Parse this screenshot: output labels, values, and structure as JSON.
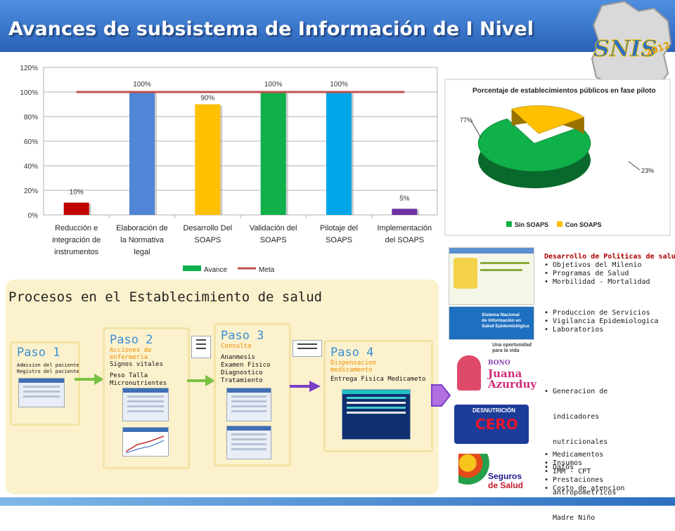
{
  "slide": {
    "title": "Avances de subsistema de Información de I Nivel",
    "logo_text": "SNIS",
    "logo_year": "2012"
  },
  "chart_data": [
    {
      "type": "bar",
      "categories": [
        "Reducción e integración de instrumentos",
        "Elaboración de la Normativa legal",
        "Desarrollo Del SOAPS",
        "Validación del SOAPS",
        "Pilotaje del SOAPS",
        "Implementación del SOAPS"
      ],
      "category_lines": [
        [
          "Reducción e",
          "integración de",
          "instrumentos"
        ],
        [
          "Elaboración de",
          "la Normativa",
          "legal"
        ],
        [
          "Desarrollo Del",
          "SOAPS"
        ],
        [
          "Validación del",
          "SOAPS"
        ],
        [
          "Pilotaje del",
          "SOAPS"
        ],
        [
          "Implementación",
          "del SOAPS"
        ]
      ],
      "series": [
        {
          "name": "Avance",
          "values": [
            10,
            100,
            90,
            100,
            100,
            5
          ],
          "labels": [
            "10%",
            "100%",
            "90%",
            "100%",
            "100%",
            "5%"
          ]
        },
        {
          "name": "Meta",
          "values": [
            100,
            100,
            100,
            100,
            100,
            100
          ]
        }
      ],
      "bar_colors": [
        "#c00000",
        "#4f86d6",
        "#ffc000",
        "#10b04a",
        "#00a6e8",
        "#7030a0"
      ],
      "meta_color": "#c0504d",
      "legend_color_avance": "#10b04a",
      "ylim": [
        0,
        120
      ],
      "yticks": [
        "0%",
        "20%",
        "40%",
        "60%",
        "80%",
        "100%",
        "120%"
      ],
      "grid": true,
      "legend": "bottom"
    },
    {
      "type": "pie",
      "title": "Porcentaje  de establecimientos públicos en fase piloto",
      "labels": [
        "Sin SOAPS",
        "Con SOAPS"
      ],
      "values": [
        77,
        23
      ],
      "value_labels": [
        "77%",
        "23%"
      ],
      "colors": [
        "#10b04a",
        "#ffc000"
      ],
      "legend": "bottom"
    }
  ],
  "process": {
    "title": "Procesos en el Establecimiento de salud",
    "step1": {
      "title": "Paso 1",
      "items": [
        "Admision del paciente",
        "Registro del paciente"
      ]
    },
    "step2": {
      "title": "Paso 2",
      "sub": [
        "Acciones de",
        "enfermeria"
      ],
      "items": [
        "Signos vitales",
        "",
        "Peso Talla",
        "Micronutrientes"
      ]
    },
    "step3": {
      "title": "Paso 3",
      "sub": [
        "Consulta"
      ],
      "items": [
        "Ananmesis",
        "Examen Fisico",
        "Diagnostico",
        "Tratamiento"
      ]
    },
    "step4": {
      "title": "Paso 4",
      "sub": [
        "Dispensacion",
        "medicamento"
      ],
      "items": [
        "Entrega Fisica Medicameto"
      ]
    }
  },
  "outputs": {
    "group1": {
      "header": "Desarrollo de Politicas de salud",
      "items": [
        "• Objetivos del Milenio",
        "• Programas de Salud",
        "• Morbilidad - Mortalidad"
      ]
    },
    "group2": {
      "items": [
        "• Produccion de Servicios",
        "• Vigilancia Epidemiologica",
        "• Laboratorios"
      ]
    },
    "group3": {
      "items": [
        "• Generacion de",
        "  indicadores",
        "  nutricionales",
        "• Datos",
        "  antropometricos",
        "  Madre Niño"
      ]
    },
    "group4": {
      "items": [
        "• Medicamentos",
        "• Insumos",
        "• IMM - CPT",
        "• Prestaciones",
        "• Costo de atencion"
      ]
    }
  },
  "thumbnails": {
    "snis_banner": [
      "Sistema Nacional",
      "de Información en",
      "Salud Epidemiológica"
    ],
    "bono_tag": [
      "Una oportunidad",
      "para la vida"
    ],
    "bono": [
      "BONO",
      "Juana",
      "Azurduy"
    ],
    "desnutricion": [
      "DESNUTRICIÓN",
      "CERO"
    ],
    "seguros": [
      "Seguros",
      "de Salud"
    ]
  }
}
